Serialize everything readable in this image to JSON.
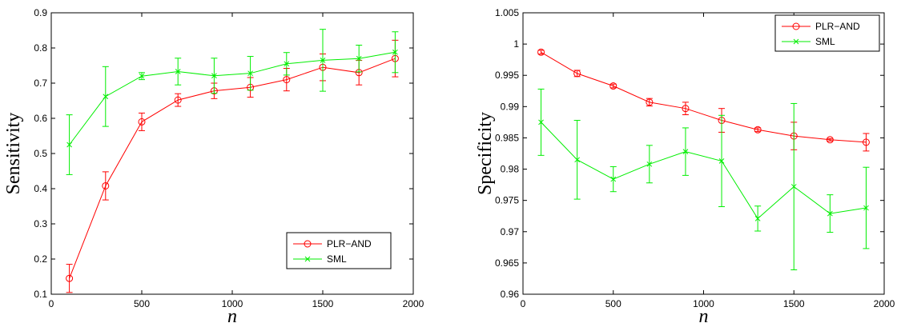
{
  "chart_data": [
    {
      "type": "line",
      "xlabel": "n",
      "ylabel": "Sensitivity",
      "xlim": [
        0,
        2000
      ],
      "ylim": [
        0.1,
        0.9
      ],
      "xticks": [
        0,
        500,
        1000,
        1500,
        2000
      ],
      "yticks": [
        0.1,
        0.2,
        0.3,
        0.4,
        0.5,
        0.6,
        0.7,
        0.8,
        0.9
      ],
      "xtick_labels": [
        "0",
        "500",
        "1000",
        "1500",
        "2000"
      ],
      "ytick_labels": [
        "0.1",
        "0.2",
        "0.3",
        "0.4",
        "0.5",
        "0.6",
        "0.7",
        "0.8",
        "0.9"
      ],
      "grid": false,
      "legend_position": "bottom-right",
      "x": [
        100,
        300,
        500,
        700,
        900,
        1100,
        1300,
        1500,
        1700,
        1900
      ],
      "series": [
        {
          "name": "PLR−AND",
          "color": "#ff0000",
          "marker": "circle",
          "values": [
            0.145,
            0.408,
            0.59,
            0.652,
            0.678,
            0.688,
            0.71,
            0.745,
            0.73,
            0.77
          ],
          "errors": [
            0.04,
            0.04,
            0.025,
            0.018,
            0.022,
            0.028,
            0.032,
            0.038,
            0.035,
            0.052
          ]
        },
        {
          "name": "SML",
          "color": "#00ee00",
          "marker": "x",
          "values": [
            0.525,
            0.662,
            0.72,
            0.733,
            0.721,
            0.728,
            0.755,
            0.765,
            0.77,
            0.788
          ],
          "errors": [
            0.085,
            0.085,
            0.01,
            0.038,
            0.05,
            0.048,
            0.032,
            0.088,
            0.038,
            0.058
          ]
        }
      ]
    },
    {
      "type": "line",
      "xlabel": "n",
      "ylabel": "Specificity",
      "xlim": [
        0,
        2000
      ],
      "ylim": [
        0.96,
        1.005
      ],
      "xticks": [
        0,
        500,
        1000,
        1500,
        2000
      ],
      "yticks": [
        0.96,
        0.965,
        0.97,
        0.975,
        0.98,
        0.985,
        0.99,
        0.995,
        1.0,
        1.005
      ],
      "xtick_labels": [
        "0",
        "500",
        "1000",
        "1500",
        "2000"
      ],
      "ytick_labels": [
        "0.96",
        "0.965",
        "0.97",
        "0.975",
        "0.98",
        "0.985",
        "0.99",
        "0.995",
        "1",
        "1.005"
      ],
      "grid": false,
      "legend_position": "top-right",
      "x": [
        100,
        300,
        500,
        700,
        900,
        1100,
        1300,
        1500,
        1700,
        1900
      ],
      "series": [
        {
          "name": "PLR−AND",
          "color": "#ff0000",
          "marker": "circle",
          "values": [
            0.9987,
            0.9953,
            0.9933,
            0.9907,
            0.9897,
            0.9878,
            0.9863,
            0.9853,
            0.9847,
            0.9843
          ],
          "errors": [
            0.0003,
            0.0005,
            0.0003,
            0.0006,
            0.001,
            0.0019,
            0.0003,
            0.0022,
            0.0002,
            0.0014
          ]
        },
        {
          "name": "SML",
          "color": "#00ee00",
          "marker": "x",
          "values": [
            0.9875,
            0.9815,
            0.9784,
            0.9808,
            0.9828,
            0.9813,
            0.9721,
            0.9772,
            0.9729,
            0.9738
          ],
          "errors": [
            0.0053,
            0.0063,
            0.002,
            0.003,
            0.0038,
            0.0073,
            0.002,
            0.0133,
            0.003,
            0.0065
          ]
        }
      ]
    }
  ]
}
